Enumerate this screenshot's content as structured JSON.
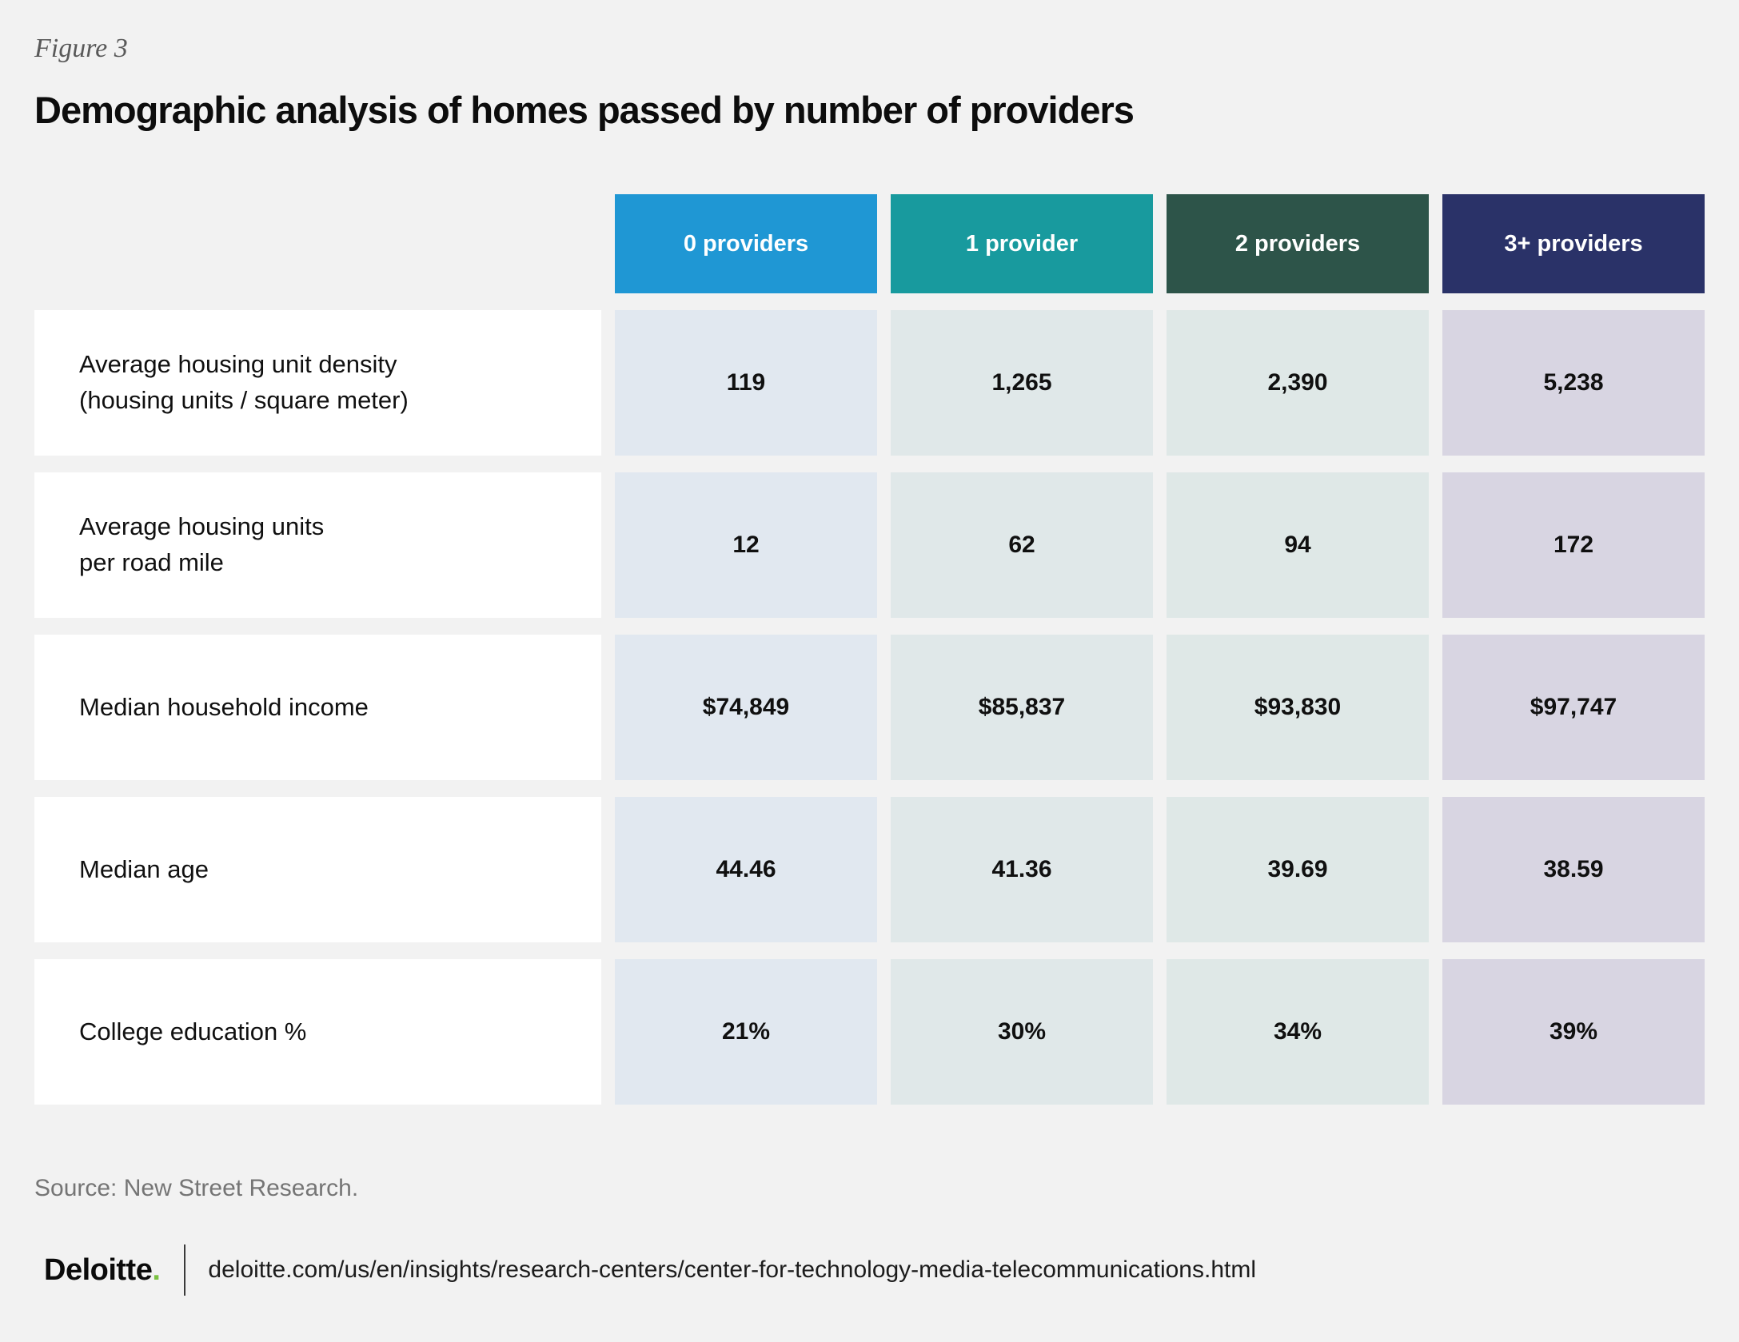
{
  "figure": {
    "label": "Figure 3",
    "title": "Demographic analysis of homes passed by number of providers"
  },
  "table": {
    "columns": [
      {
        "label": "0 providers",
        "header_color": "#1f97d4",
        "cell_color": "#e1e8f0"
      },
      {
        "label": "1 provider",
        "header_color": "#189a9e",
        "cell_color": "#e0e8e9"
      },
      {
        "label": "2 providers",
        "header_color": "#2d5449",
        "cell_color": "#dfe8e7"
      },
      {
        "label": "3+ providers",
        "header_color": "#2a3268",
        "cell_color": "#d8d5e2"
      }
    ],
    "rows": [
      {
        "label": "Average housing unit density\n(housing units / square meter)",
        "values": [
          "119",
          "1,265",
          "2,390",
          "5,238"
        ]
      },
      {
        "label": "Average housing units\nper road mile",
        "values": [
          "12",
          "62",
          "94",
          "172"
        ]
      },
      {
        "label": "Median household income",
        "values": [
          "$74,849",
          "$85,837",
          "$93,830",
          "$97,747"
        ]
      },
      {
        "label": "Median age",
        "values": [
          "44.46",
          "41.36",
          "39.69",
          "38.59"
        ]
      },
      {
        "label": "College education %",
        "values": [
          "21%",
          "30%",
          "34%",
          "39%"
        ]
      }
    ]
  },
  "footer": {
    "source": "Source: New Street Research.",
    "logo_text": "Deloitte",
    "logo_dot": ".",
    "url": "deloitte.com/us/en/insights/research-centers/center-for-technology-media-telecommunications.html"
  },
  "colors": {
    "page_background": "#f2f2f2",
    "row_label_background": "#ffffff",
    "logo_dot_green": "#7ac142"
  },
  "chart_data": {
    "type": "table",
    "title": "Demographic analysis of homes passed by number of providers",
    "figure_label": "Figure 3",
    "categories": [
      "0 providers",
      "1 provider",
      "2 providers",
      "3+ providers"
    ],
    "series": [
      {
        "name": "Average housing unit density (housing units / square meter)",
        "values": [
          119,
          1265,
          2390,
          5238
        ]
      },
      {
        "name": "Average housing units per road mile",
        "values": [
          12,
          62,
          94,
          172
        ]
      },
      {
        "name": "Median household income",
        "values": [
          74849,
          85837,
          93830,
          97747
        ],
        "unit": "USD"
      },
      {
        "name": "Median age",
        "values": [
          44.46,
          41.36,
          39.69,
          38.59
        ]
      },
      {
        "name": "College education %",
        "values": [
          21,
          30,
          34,
          39
        ],
        "unit": "%"
      }
    ],
    "source": "New Street Research"
  }
}
